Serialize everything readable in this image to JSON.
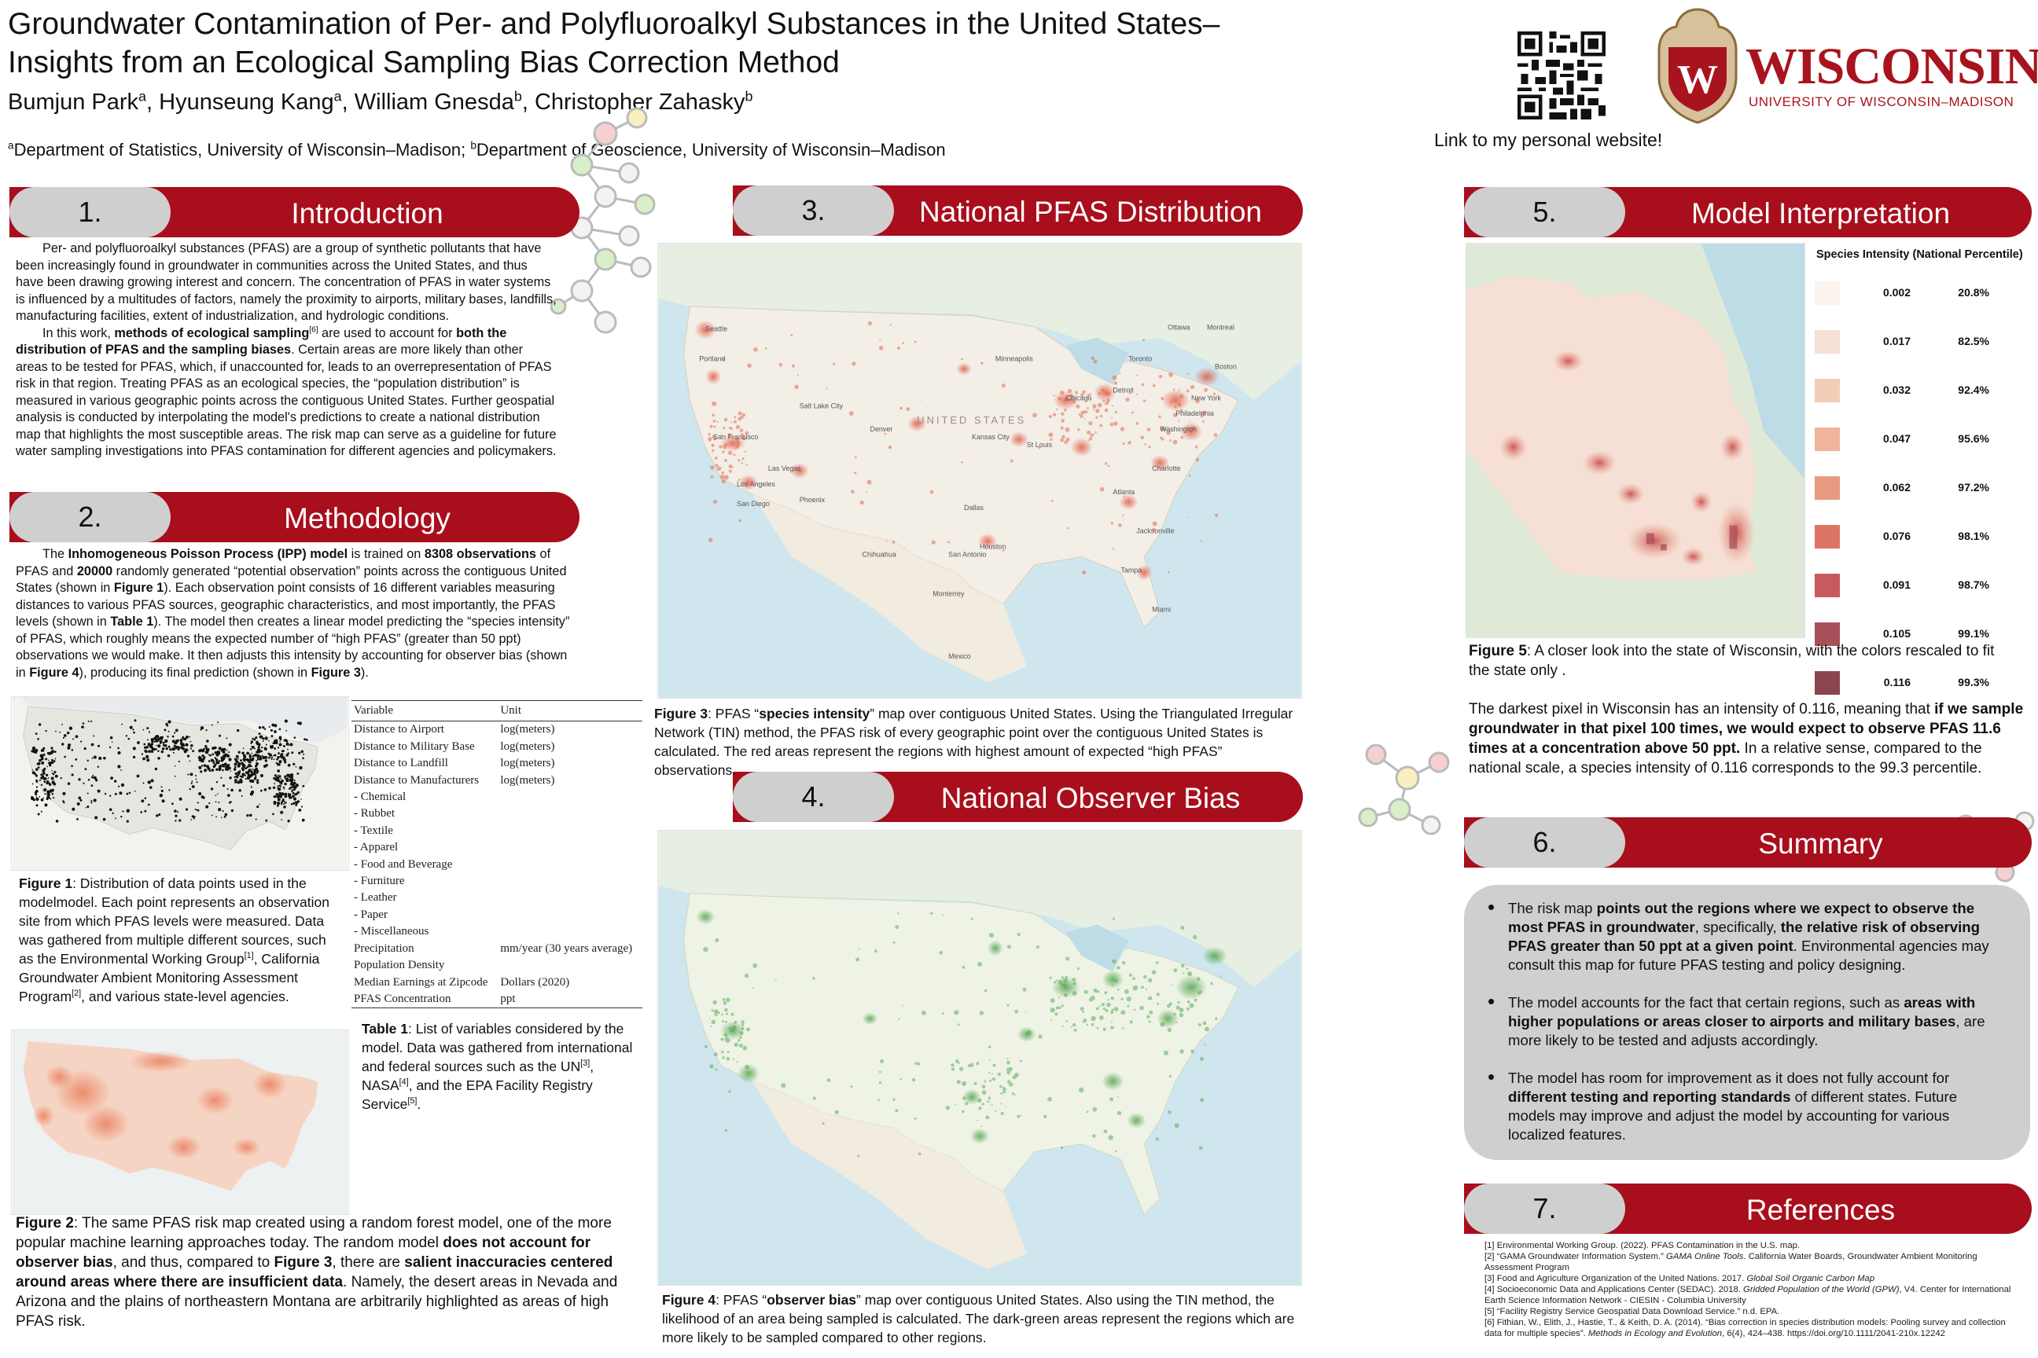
{
  "header": {
    "title_line1": "Groundwater Contamination of Per- and Polyfluoroalkyl Substances in the United States–",
    "title_line2": "Insights from an Ecological Sampling Bias Correction Method",
    "authors": [
      {
        "name": "Bumjun Park",
        "sup": "a"
      },
      {
        "name": "Hyunseung Kang",
        "sup": "a"
      },
      {
        "name": "William Gnesda",
        "sup": "b"
      },
      {
        "name": "Christopher Zahasky",
        "sup": "b"
      }
    ],
    "affiliation_a_sup": "a",
    "affiliation_a": "Department of Statistics, University of Wisconsin–Madison; ",
    "affiliation_b_sup": "b",
    "affiliation_b": "Department of Geoscience, University of Wisconsin–Madison",
    "qr_caption": "Link to my personal website!",
    "logo_word": "WISCONSIN",
    "logo_sub": "UNIVERSITY OF WISCONSIN–MADISON",
    "logo_crest_letter": "W",
    "accent_color": "#a80e1c"
  },
  "sections": {
    "s1": {
      "num": "1.",
      "label": "Introduction"
    },
    "s2": {
      "num": "2.",
      "label": "Methodology"
    },
    "s3": {
      "num": "3.",
      "label": "National PFAS Distribution"
    },
    "s4": {
      "num": "4.",
      "label": "National Observer Bias"
    },
    "s5": {
      "num": "5.",
      "label": "Model Interpretation"
    },
    "s6": {
      "num": "6.",
      "label": "Summary"
    },
    "s7": {
      "num": "7.",
      "label": "References"
    }
  },
  "intro": {
    "p1": "Per- and polyfluoroalkyl substances (PFAS) are a group of synthetic pollutants that have been increasingly found in groundwater in communities across the United States, and thus have been drawing growing interest and concern. The concentration of PFAS in water systems is influenced by a multitudes of factors, namely the proximity to airports, military bases, landfills, manufacturing facilities, extent of industrialization, and hydrologic conditions.",
    "p2_a": "In this work, ",
    "p2_b1": "methods of ecological sampling",
    "p2_sup": "[6]",
    "p2_c": " are used to account for ",
    "p2_b2": "both the distribution of PFAS and the sampling biases",
    "p2_d": ". Certain areas are more likely than other areas to be tested for PFAS, which, if unaccounted for,  leads to an overrepresentation of PFAS risk in that region. Treating PFAS as an ecological species, the “population distribution” is measured in various geographic points across the contiguous United States. Further geospatial analysis is conducted by interpolating the model's predictions to create a national distribution map that highlights the most susceptible areas. The risk map can serve as a guideline for future water sampling investigations into PFAS contamination for different agencies and policymakers."
  },
  "method": {
    "a": "The ",
    "b1": "Inhomogeneous Poisson Process (IPP) model",
    "c": " is trained on ",
    "b2": "8308 observations",
    "d": " of PFAS and ",
    "b3": "20000",
    "e": " randomly generated “potential observation” points across the contiguous United States (shown in ",
    "b4": "Figure 1",
    "f": "). Each observation point consists of 16 different variables measuring distances to various PFAS sources, geographic characteristics, and most importantly, the PFAS levels (shown in ",
    "b5": "Table 1",
    "g": "). The model then creates a linear model predicting the “species intensity” of PFAS, which roughly means the expected number of “high PFAS” (greater than 50 ppt) observations we would make. It then adjusts this intensity by accounting for observer bias (shown in ",
    "b6": "Figure 4",
    "h": "), producing its final prediction (shown in ",
    "b7": "Figure 3",
    "i": ")."
  },
  "fig1": {
    "label": "Figure 1",
    "text": ": Distribution of data points used in the modelmodel. Each point represents an observation site from which PFAS levels were measured. Data was gathered from multiple different sources, such as the Environmental Working Group",
    "sup1": "[1]",
    "text2": ", California Groundwater Ambient Monitoring Assessment Program",
    "sup2": "[2]",
    "text3": ", and various state-level agencies."
  },
  "table1": {
    "headers": [
      "Variable",
      "Unit"
    ],
    "rows": [
      [
        "Distance to Airport",
        "log(meters)"
      ],
      [
        "Distance to Military Base",
        "log(meters)"
      ],
      [
        "Distance to Landfill",
        "log(meters)"
      ],
      [
        "Distance to Manufacturers",
        "log(meters)"
      ],
      [
        "- Chemical",
        ""
      ],
      [
        "- Rubbet",
        ""
      ],
      [
        "- Textile",
        ""
      ],
      [
        "- Apparel",
        ""
      ],
      [
        "- Food and Beverage",
        ""
      ],
      [
        "- Furniture",
        ""
      ],
      [
        "- Leather",
        ""
      ],
      [
        "- Paper",
        ""
      ],
      [
        "- Miscellaneous",
        ""
      ],
      [
        "Precipitation",
        "mm/year (30 years average)"
      ],
      [
        "Population Density",
        ""
      ],
      [
        "Median Earnings at Zipcode",
        "Dollars (2020)"
      ],
      [
        "PFAS Concentration",
        "ppt"
      ]
    ],
    "cap_label": "Table 1",
    "cap_text": ": List of variables considered by the model. Data was gathered from international and federal sources such as the UN",
    "cap_sup1": "[3]",
    "cap_text2": ", NASA",
    "cap_sup2": "[4]",
    "cap_text3": ", and the EPA Facility Registry Service",
    "cap_sup3": "[5]",
    "cap_text4": "."
  },
  "fig2": {
    "label": "Figure 2",
    "a": ": The same PFAS risk map created using a random forest model, one of the more popular machine learning approaches today. The random model ",
    "b1": "does not account for observer bias",
    "c": ", and thus, compared to ",
    "b2": "Figure 3",
    "d": ", there are ",
    "b3": "salient inaccuracies centered around areas where there are insufficient data",
    "e": ". Namely, the desert areas in Nevada and Arizona and the plains of northeastern Montana are arbitrarily highlighted as areas of high PFAS risk."
  },
  "fig3": {
    "label": "Figure 3",
    "a": ": PFAS “",
    "b": "species intensity",
    "c": "” map over contiguous United States. Using the Triangulated Irregular Network (TIN) method, the PFAS risk of every geographic point over the contiguous United States is calculated. The red areas represent the regions with highest amount of expected “high PFAS” observations."
  },
  "fig4": {
    "label": "Figure 4",
    "a": ": PFAS “",
    "b": "observer bias",
    "c": "” map over contiguous United States. Also using the TIN method, the likelihood of an area being sampled is calculated. The dark-green areas represent the regions which are more likely to be sampled compared to other regions."
  },
  "map_labels": {
    "country": "UNITED STATES",
    "cities": [
      "Seattle",
      "Portland",
      "Minneapolis",
      "Chicago",
      "Detroit",
      "Toronto",
      "Ottawa",
      "Montreal",
      "Boston",
      "New York",
      "Philadelphia",
      "Washington",
      "Denver",
      "Kansas City",
      "St Louis",
      "Salt Lake City",
      "Las Vegas",
      "San Francisco",
      "Los Angeles",
      "San Diego",
      "Phoenix",
      "Dallas",
      "Houston",
      "San Antonio",
      "Atlanta",
      "Charlotte",
      "Jacksonville",
      "Tampa",
      "Miami",
      "Monterrey",
      "Chihuahua",
      "Mexico"
    ]
  },
  "fig5": {
    "label": "Figure 5",
    "a": ": A closer look into the state of Wisconsin, with the colors rescaled to fit the state only .",
    "p2a": "The darkest pixel in Wisconsin has an intensity of 0.116, meaning that ",
    "p2b": "if we sample groundwater in that pixel 100 times, we would expect to observe PFAS 11.6 times at a concentration above 50 ppt.",
    "p2c": " In a relative sense, compared to the national scale, a species intensity of 0.116 corresponds to the 99.3 percentile."
  },
  "legend": {
    "title": "Species Intensity (National Percentile)",
    "items": [
      {
        "value": "0.002",
        "pct": "20.8%",
        "color": "#fbf3ee"
      },
      {
        "value": "0.017",
        "pct": "82.5%",
        "color": "#f6e0d6"
      },
      {
        "value": "0.032",
        "pct": "92.4%",
        "color": "#f4cdb9"
      },
      {
        "value": "0.047",
        "pct": "95.6%",
        "color": "#efb59c"
      },
      {
        "value": "0.062",
        "pct": "97.2%",
        "color": "#e89a80"
      },
      {
        "value": "0.076",
        "pct": "98.1%",
        "color": "#dc7566"
      },
      {
        "value": "0.091",
        "pct": "98.7%",
        "color": "#c65a5d"
      },
      {
        "value": "0.105",
        "pct": "99.1%",
        "color": "#a8505a"
      },
      {
        "value": "0.116",
        "pct": "99.3%",
        "color": "#8a4650"
      }
    ]
  },
  "summary": {
    "i1a": "The risk map ",
    "i1b": "points out the regions where we expect to observe the most PFAS in groundwater",
    "i1c": ", specifically, ",
    "i1d": "the relative risk of observing PFAS greater than 50 ppt at a given point",
    "i1e": ". Environmental agencies may consult this map for future PFAS testing and policy designing.",
    "i2a": "The model accounts for the fact that certain regions, such as ",
    "i2b": "areas with higher populations or areas closer to airports and military bases",
    "i2c": ", are more likely to be tested and adjusts accordingly.",
    "i3a": "The model has room for improvement as it does not fully account for ",
    "i3b": "different testing and reporting standards",
    "i3c": " of different states. Future models may improve and adjust the model by accounting for various localized features."
  },
  "references": [
    {
      "a": "[1] Environmental Working Group. (2022). PFAS Contamination in the U.S. map.",
      "i": "",
      "b": ""
    },
    {
      "a": "[2] “GAMA Groundwater Information System.” ",
      "i": "GAMA Online Tools",
      "b": ". California Water Boards, Groundwater Ambient Monitoring Assessment Program"
    },
    {
      "a": "[3] Food and Agriculture Organization of the United Nations. 2017. ",
      "i": "Global Soil Organic Carbon Map",
      "b": ""
    },
    {
      "a": "[4] Socioeconomic Data and Applications Center (SEDAC). 2018. ",
      "i": "Gridded Population of the World (GPW)",
      "b": ", V4. Center for International Earth Science Information Network - CIESIN - Columbia University"
    },
    {
      "a": "[5] “Facility Registry Service Geospatial Data Download Service.” n.d. EPA.",
      "i": "",
      "b": ""
    },
    {
      "a": "[6] Fithian, W., Elith, J., Hastie, T., & Keith, D. A. (2014). “Bias correction in species distribution models: Pooling survey and collection data for multiple species”. ",
      "i": "Methods in Ecology and Evolution",
      "b": ", 6(4), 424–438. https://doi.org/10.1111/2041-210x.12242"
    }
  ]
}
